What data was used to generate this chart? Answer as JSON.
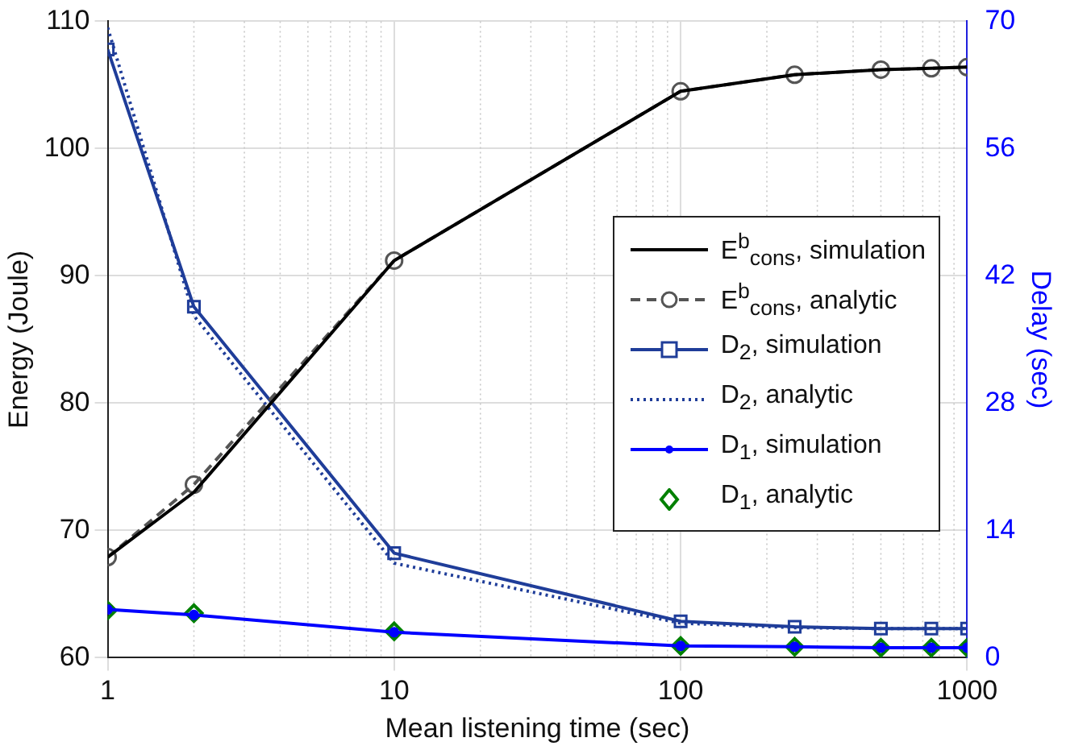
{
  "chart_data": {
    "type": "line",
    "xlabel": "Mean listening time (sec)",
    "ylabel": "Energy (Joule)",
    "y2label": "Delay (sec)",
    "log": "x",
    "grid": true,
    "legend": "right",
    "x": [
      1,
      2,
      10,
      100,
      250,
      500,
      750,
      1000
    ],
    "xlim": [
      1,
      1000
    ],
    "xticks": [
      1,
      10,
      100,
      1000
    ],
    "ylim": [
      60,
      110
    ],
    "yticks": [
      60,
      70,
      80,
      90,
      100,
      110
    ],
    "y2lim": [
      0,
      70
    ],
    "y2ticks": [
      0,
      14,
      28,
      42,
      56,
      70
    ],
    "series": [
      {
        "name": "E$^{b}$$_{cons}$, simulation",
        "color": "#000000",
        "line_style": "solid",
        "marker": "none",
        "values": [
          67.9,
          73.0,
          91.2,
          104.5,
          105.8,
          106.2,
          106.3,
          106.4
        ]
      },
      {
        "name": "E$^{b}$$_{cons}$, analytic",
        "color": "#555555",
        "line_style": "dashed",
        "marker": "circle",
        "values": [
          67.9,
          73.6,
          91.2,
          104.5,
          105.8,
          106.2,
          106.3,
          106.4
        ]
      },
      {
        "name": "D$_{2}$, simulation",
        "color": "#1f3d99",
        "line_style": "solid",
        "marker": "square",
        "axis": "y2",
        "values": [
          66.9,
          38.6,
          11.5,
          4.0,
          3.4,
          3.2,
          3.2,
          3.2
        ]
      },
      {
        "name": "D$_{2}$, analytic",
        "color": "#1f3d99",
        "line_style": "dotted",
        "marker": "none",
        "axis": "y2",
        "values": [
          69.3,
          37.6,
          10.4,
          3.8,
          3.3,
          3.2,
          3.2,
          3.2
        ]
      },
      {
        "name": "D$_{1}$, simulation",
        "color": "#0000ff",
        "line_style": "solid",
        "marker": "circle",
        "axis": "y2",
        "values": [
          5.3,
          4.7,
          2.8,
          1.3,
          1.2,
          1.1,
          1.1,
          1.1
        ]
      },
      {
        "name": "D$_{1}$, analytic",
        "type": "scatter",
        "color": "#008000",
        "marker": "diamond",
        "axis": "y2",
        "values": [
          5.2,
          4.9,
          2.9,
          1.3,
          1.2,
          1.1,
          1.1,
          1.1
        ]
      }
    ]
  }
}
